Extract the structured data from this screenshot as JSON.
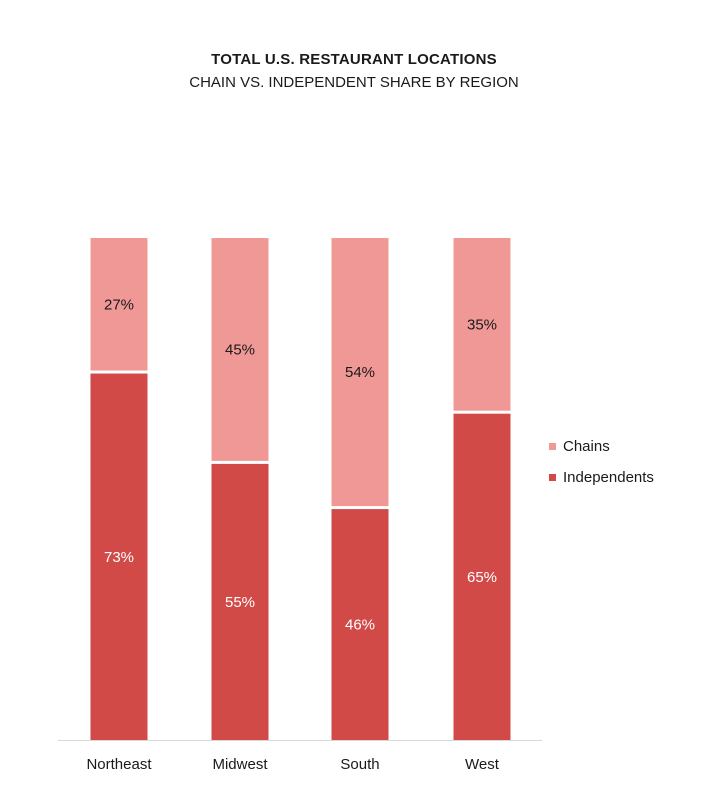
{
  "chart_data": {
    "type": "bar",
    "stacked": true,
    "normalized": true,
    "title": "TOTAL U.S. RESTAURANT LOCATIONS",
    "subtitle": "CHAIN VS. INDEPENDENT SHARE BY REGION",
    "categories": [
      "Northeast",
      "Midwest",
      "South",
      "West"
    ],
    "series": [
      {
        "name": "Independents",
        "values": [
          73,
          55,
          46,
          65
        ],
        "labels": [
          "73%",
          "55%",
          "46%",
          "65%"
        ],
        "color": "#d24a48",
        "label_color": "#ffffff"
      },
      {
        "name": "Chains",
        "values": [
          27,
          45,
          54,
          35
        ],
        "labels": [
          "27%",
          "45%",
          "54%",
          "35%"
        ],
        "color": "#f09896",
        "label_color": "#1a1a1a"
      }
    ],
    "ylim": [
      0,
      100
    ],
    "legend_position": "right",
    "grid": false
  },
  "legend": {
    "items": [
      {
        "label": "Chains",
        "color": "#f09896"
      },
      {
        "label": "Independents",
        "color": "#d24a48"
      }
    ]
  }
}
